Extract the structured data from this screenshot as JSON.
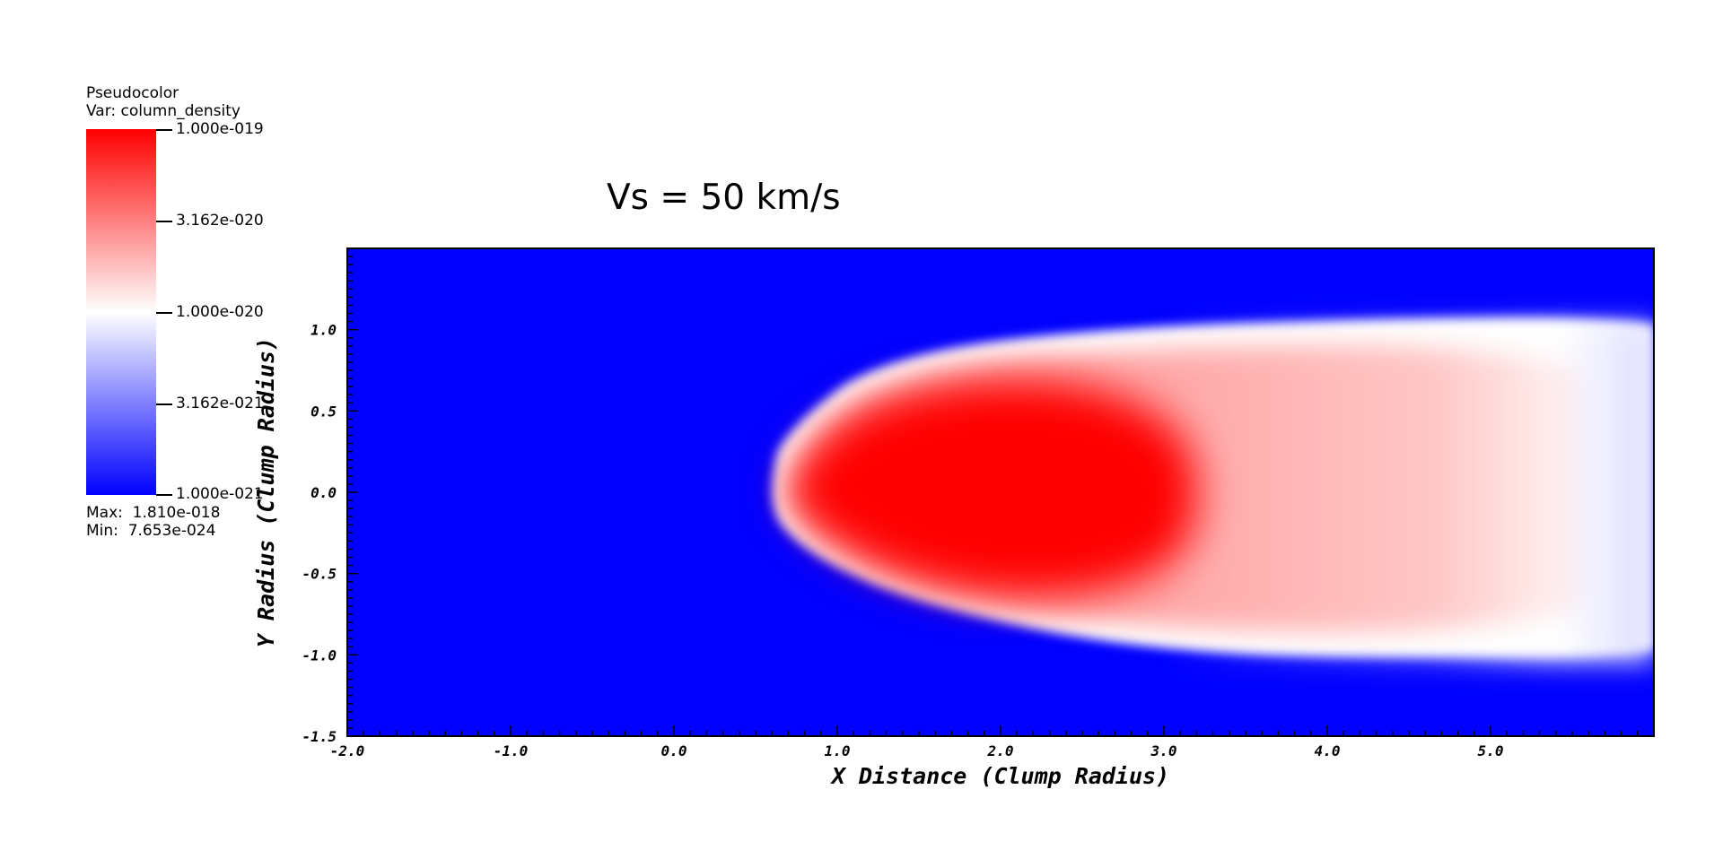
{
  "legend": {
    "plot_type": "Pseudocolor",
    "variable": "Var: column_density",
    "ticks": [
      "1.000e-019",
      "3.162e-020",
      "1.000e-020",
      "3.162e-021",
      "1.000e-021"
    ],
    "max_text": "Max:  1.810e-018",
    "min_text": "Min:  7.653e-024",
    "colors": {
      "high": "#ff0000",
      "mid": "#ffffff",
      "low": "#0000ff"
    }
  },
  "chart_data": {
    "type": "heatmap",
    "title": "Vs = 50 km/s",
    "xlabel": "X Distance (Clump Radius)",
    "ylabel": "Y Radius (Clump Radius)",
    "xlim": [
      -2.0,
      6.0
    ],
    "ylim": [
      -1.5,
      1.5
    ],
    "xticks": [
      -2.0,
      -1.0,
      0.0,
      1.0,
      2.0,
      3.0,
      4.0,
      5.0
    ],
    "xtick_labels": [
      "-2.0",
      "-1.0",
      "0.0",
      "1.0",
      "2.0",
      "3.0",
      "4.0",
      "5.0"
    ],
    "yticks": [
      -1.5,
      -1.0,
      -0.5,
      0.0,
      0.5,
      1.0
    ],
    "ytick_labels": [
      "-1.5",
      "-1.0",
      "-0.5",
      "0.0",
      "0.5",
      "1.0"
    ],
    "colorscale": "log",
    "color_range": [
      1e-21,
      1e-19
    ],
    "colors": {
      "background": "#0000ff",
      "high": "#ff0000",
      "mid": "#ffffff"
    },
    "grid": false
  }
}
